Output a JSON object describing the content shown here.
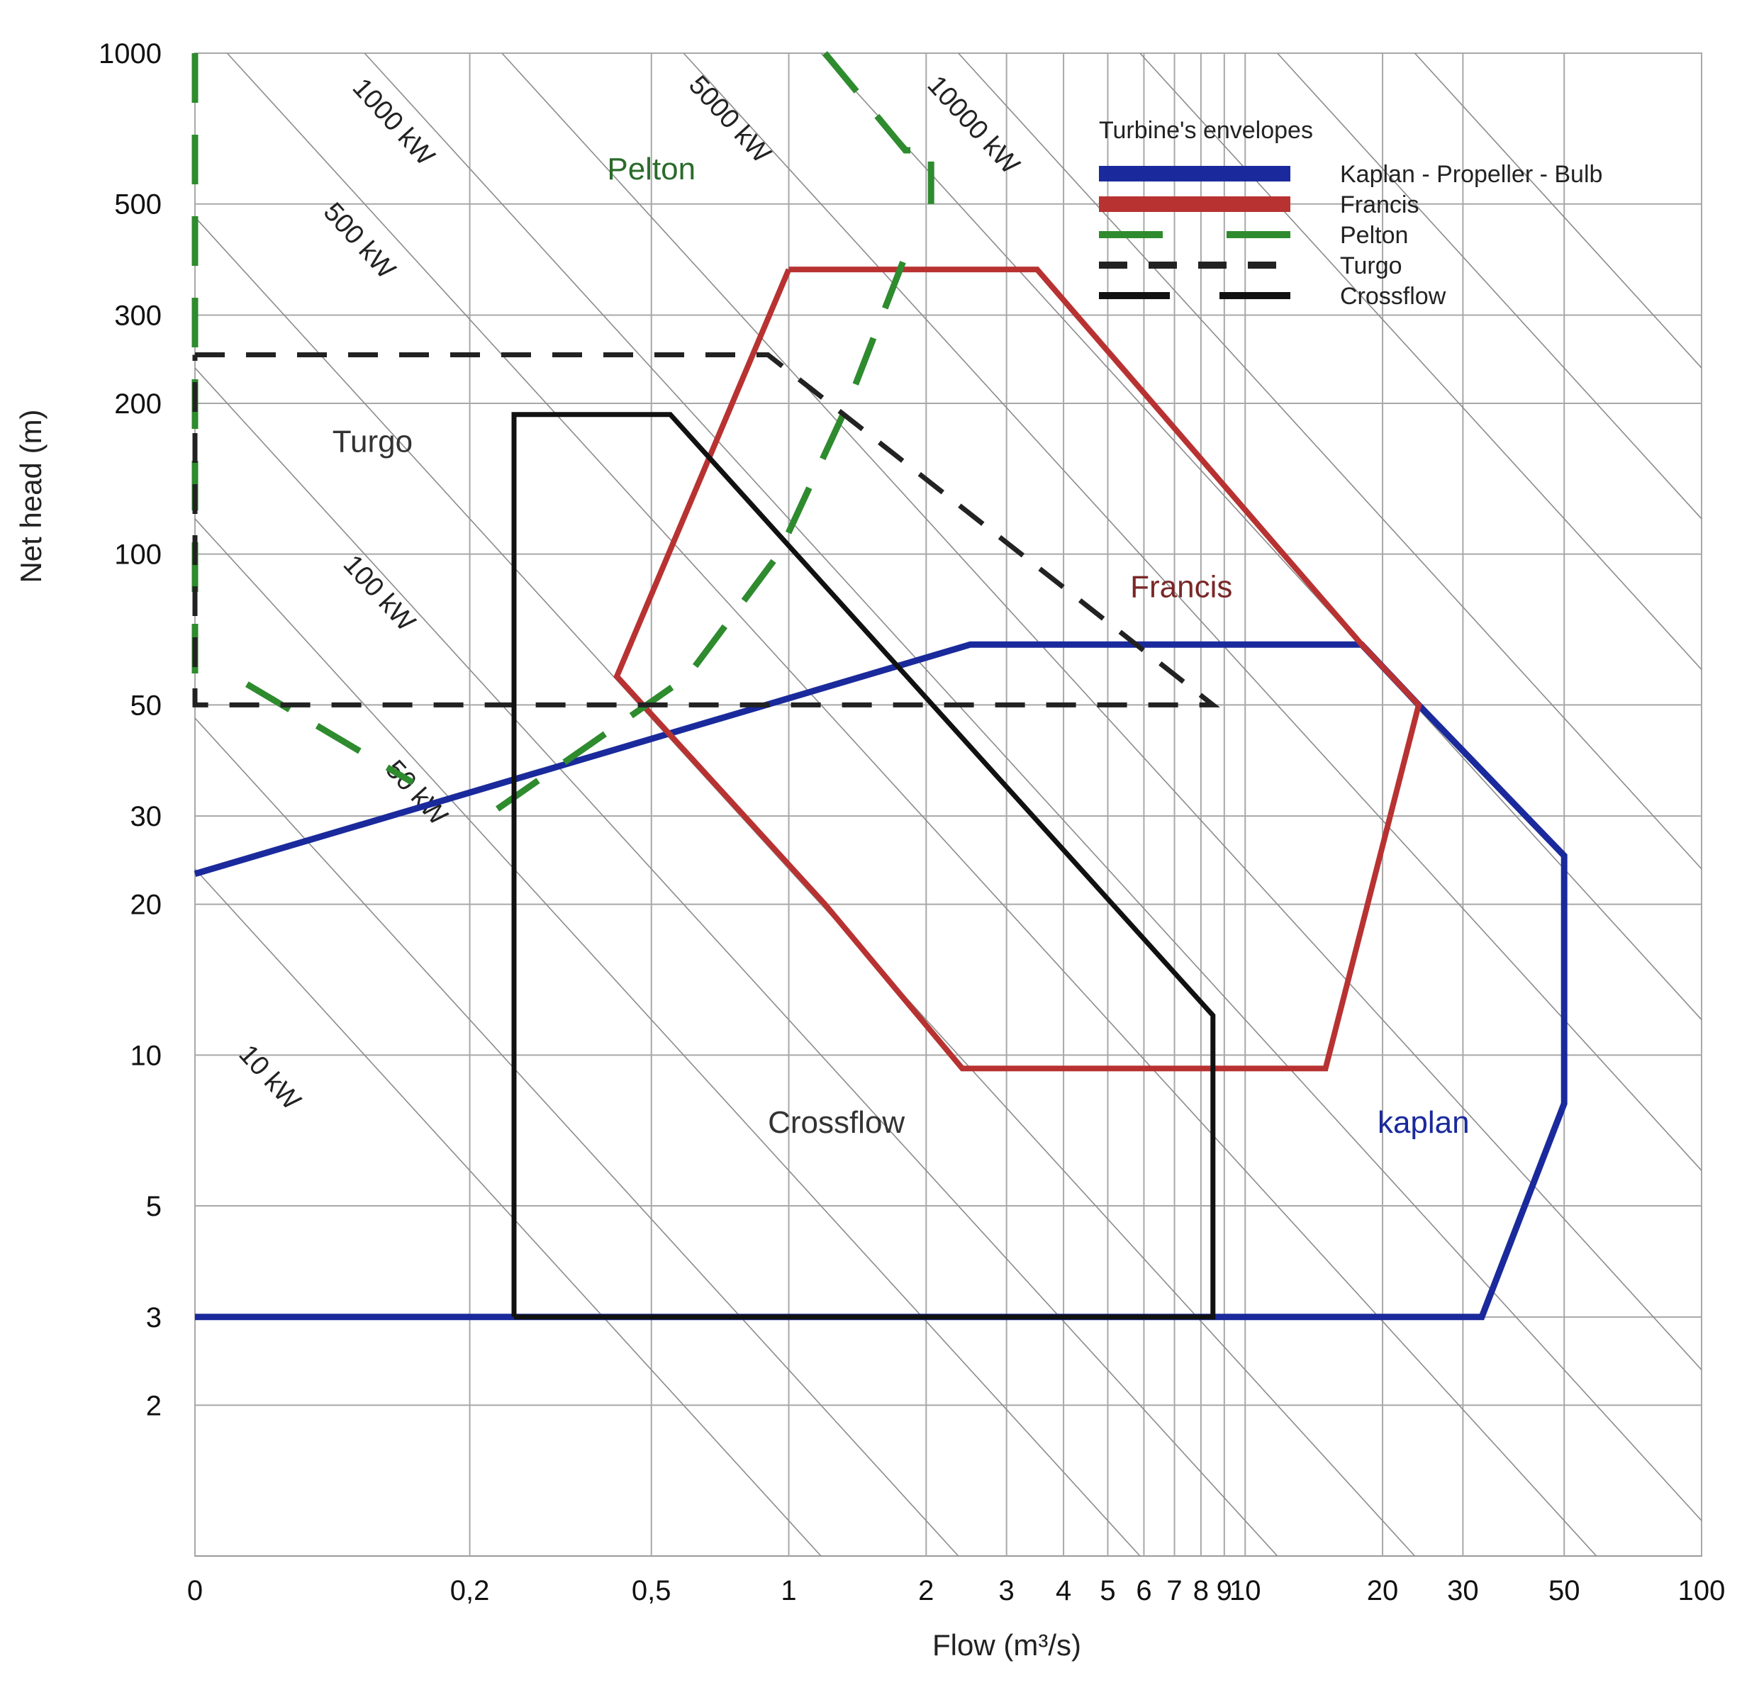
{
  "chart_data": {
    "type": "line",
    "title": "",
    "xlabel": "Flow (m³/s)",
    "ylabel": "Net head (m)",
    "x_scale": "log",
    "y_scale": "log",
    "xlim": [
      0.05,
      100
    ],
    "ylim": [
      1,
      1000
    ],
    "grid": true,
    "x_ticks": [
      {
        "value": 0.05,
        "label": "0"
      },
      {
        "value": 0.2,
        "label": "0,2"
      },
      {
        "value": 0.5,
        "label": "0,5"
      },
      {
        "value": 1,
        "label": "1"
      },
      {
        "value": 2,
        "label": "2"
      },
      {
        "value": 3,
        "label": "3"
      },
      {
        "value": 4,
        "label": "4"
      },
      {
        "value": 5,
        "label": "5"
      },
      {
        "value": 6,
        "label": "6"
      },
      {
        "value": 7,
        "label": "7"
      },
      {
        "value": 8,
        "label": "8"
      },
      {
        "value": 9,
        "label": "9"
      },
      {
        "value": 10,
        "label": "10"
      },
      {
        "value": 20,
        "label": "20"
      },
      {
        "value": 30,
        "label": "30"
      },
      {
        "value": 50,
        "label": "50"
      },
      {
        "value": 100,
        "label": "100"
      }
    ],
    "y_ticks": [
      {
        "value": 2,
        "label": "2"
      },
      {
        "value": 3,
        "label": "3"
      },
      {
        "value": 5,
        "label": "5"
      },
      {
        "value": 10,
        "label": "10"
      },
      {
        "value": 20,
        "label": "20"
      },
      {
        "value": 30,
        "label": "30"
      },
      {
        "value": 50,
        "label": "50"
      },
      {
        "value": 100,
        "label": "100"
      },
      {
        "value": 200,
        "label": "200"
      },
      {
        "value": 300,
        "label": "300"
      },
      {
        "value": 500,
        "label": "500"
      },
      {
        "value": 1000,
        "label": "1000"
      }
    ],
    "power_lines": [
      {
        "kw": 10,
        "label": "10 kW",
        "label_at": [
          0.062,
          10
        ]
      },
      {
        "kw": 50,
        "label": "50 kW",
        "label_at": [
          0.13,
          37
        ]
      },
      {
        "kw": 100,
        "label": "100 kW",
        "label_at": [
          0.105,
          95
        ]
      },
      {
        "kw": 500,
        "label": "500 kW",
        "label_at": [
          0.095,
          480
        ]
      },
      {
        "kw": 1000,
        "label": "1000 kW",
        "label_at": [
          0.11,
          850
        ]
      },
      {
        "kw": 5000,
        "label": "5000 kW",
        "label_at": [
          0.6,
          860
        ]
      },
      {
        "kw": 10000,
        "label": "10000 kW",
        "label_at": [
          2.0,
          860
        ]
      },
      {
        "kw": 20000,
        "label": ""
      },
      {
        "kw": 50000,
        "label": ""
      },
      {
        "kw": 100000,
        "label": ""
      },
      {
        "kw": 200000,
        "label": ""
      },
      {
        "kw": 2000,
        "label": ""
      },
      {
        "kw": 200,
        "label": ""
      },
      {
        "kw": 20,
        "label": ""
      }
    ],
    "legend": {
      "title": "Turbine's envelopes",
      "placement": "top-right"
    },
    "series": [
      {
        "name": "Kaplan - Propeller - Bulb",
        "color": "#1a2a9c",
        "style": "solid",
        "points": [
          [
            0.05,
            23
          ],
          [
            2.5,
            66
          ],
          [
            18,
            66
          ],
          [
            24,
            50
          ],
          [
            50,
            25
          ],
          [
            50,
            8
          ],
          [
            33,
            3
          ],
          [
            0.05,
            3
          ]
        ]
      },
      {
        "name": "Francis",
        "color": "#b83232",
        "style": "solid",
        "points": [
          [
            1,
            370
          ],
          [
            3.5,
            370
          ],
          [
            18,
            66
          ],
          [
            24,
            50
          ],
          [
            15,
            9.4
          ],
          [
            2.4,
            9.4
          ],
          [
            1.2,
            20
          ],
          [
            0.42,
            57
          ],
          [
            1,
            370
          ]
        ]
      },
      {
        "name": "Pelton",
        "color": "#2e8b2e",
        "style": "dashed",
        "segments": [
          [
            [
              0.05,
              1000
            ],
            [
              0.05,
              50
            ]
          ],
          [
            [
              0.065,
              55
            ],
            [
              0.15,
              35
            ]
          ],
          [
            [
              0.23,
              31
            ],
            [
              0.6,
              57
            ],
            [
              0.95,
              100
            ],
            [
              1.35,
              200
            ],
            [
              1.85,
              420
            ]
          ],
          [
            [
              1.2,
              1000
            ],
            [
              1.8,
              640
            ],
            [
              2.05,
              640
            ],
            [
              2.05,
              500
            ]
          ]
        ]
      },
      {
        "name": "Turgo",
        "color": "#222222",
        "style": "dashed",
        "points": [
          [
            0.05,
            250
          ],
          [
            0.9,
            250
          ],
          [
            8.5,
            50
          ],
          [
            0.05,
            50
          ],
          [
            0.05,
            250
          ]
        ]
      },
      {
        "name": "Crossflow",
        "color": "#111111",
        "style": "solid",
        "points": [
          [
            0.25,
            3
          ],
          [
            0.25,
            190
          ],
          [
            0.55,
            190
          ],
          [
            8.5,
            12
          ],
          [
            8.5,
            3
          ],
          [
            0.25,
            3
          ]
        ]
      }
    ],
    "region_labels": [
      {
        "text": "Pelton",
        "x": 0.4,
        "y": 560,
        "color": "#2b6b2b"
      },
      {
        "text": "Turgo",
        "x": 0.1,
        "y": 160,
        "color": "#333333"
      },
      {
        "text": "Francis",
        "x": 5.6,
        "y": 82,
        "color": "#7a2828"
      },
      {
        "text": "Crossflow",
        "x": 0.9,
        "y": 7,
        "color": "#333333"
      },
      {
        "text": "kaplan",
        "x": 19.5,
        "y": 7,
        "color": "#1a2a9c"
      }
    ]
  }
}
